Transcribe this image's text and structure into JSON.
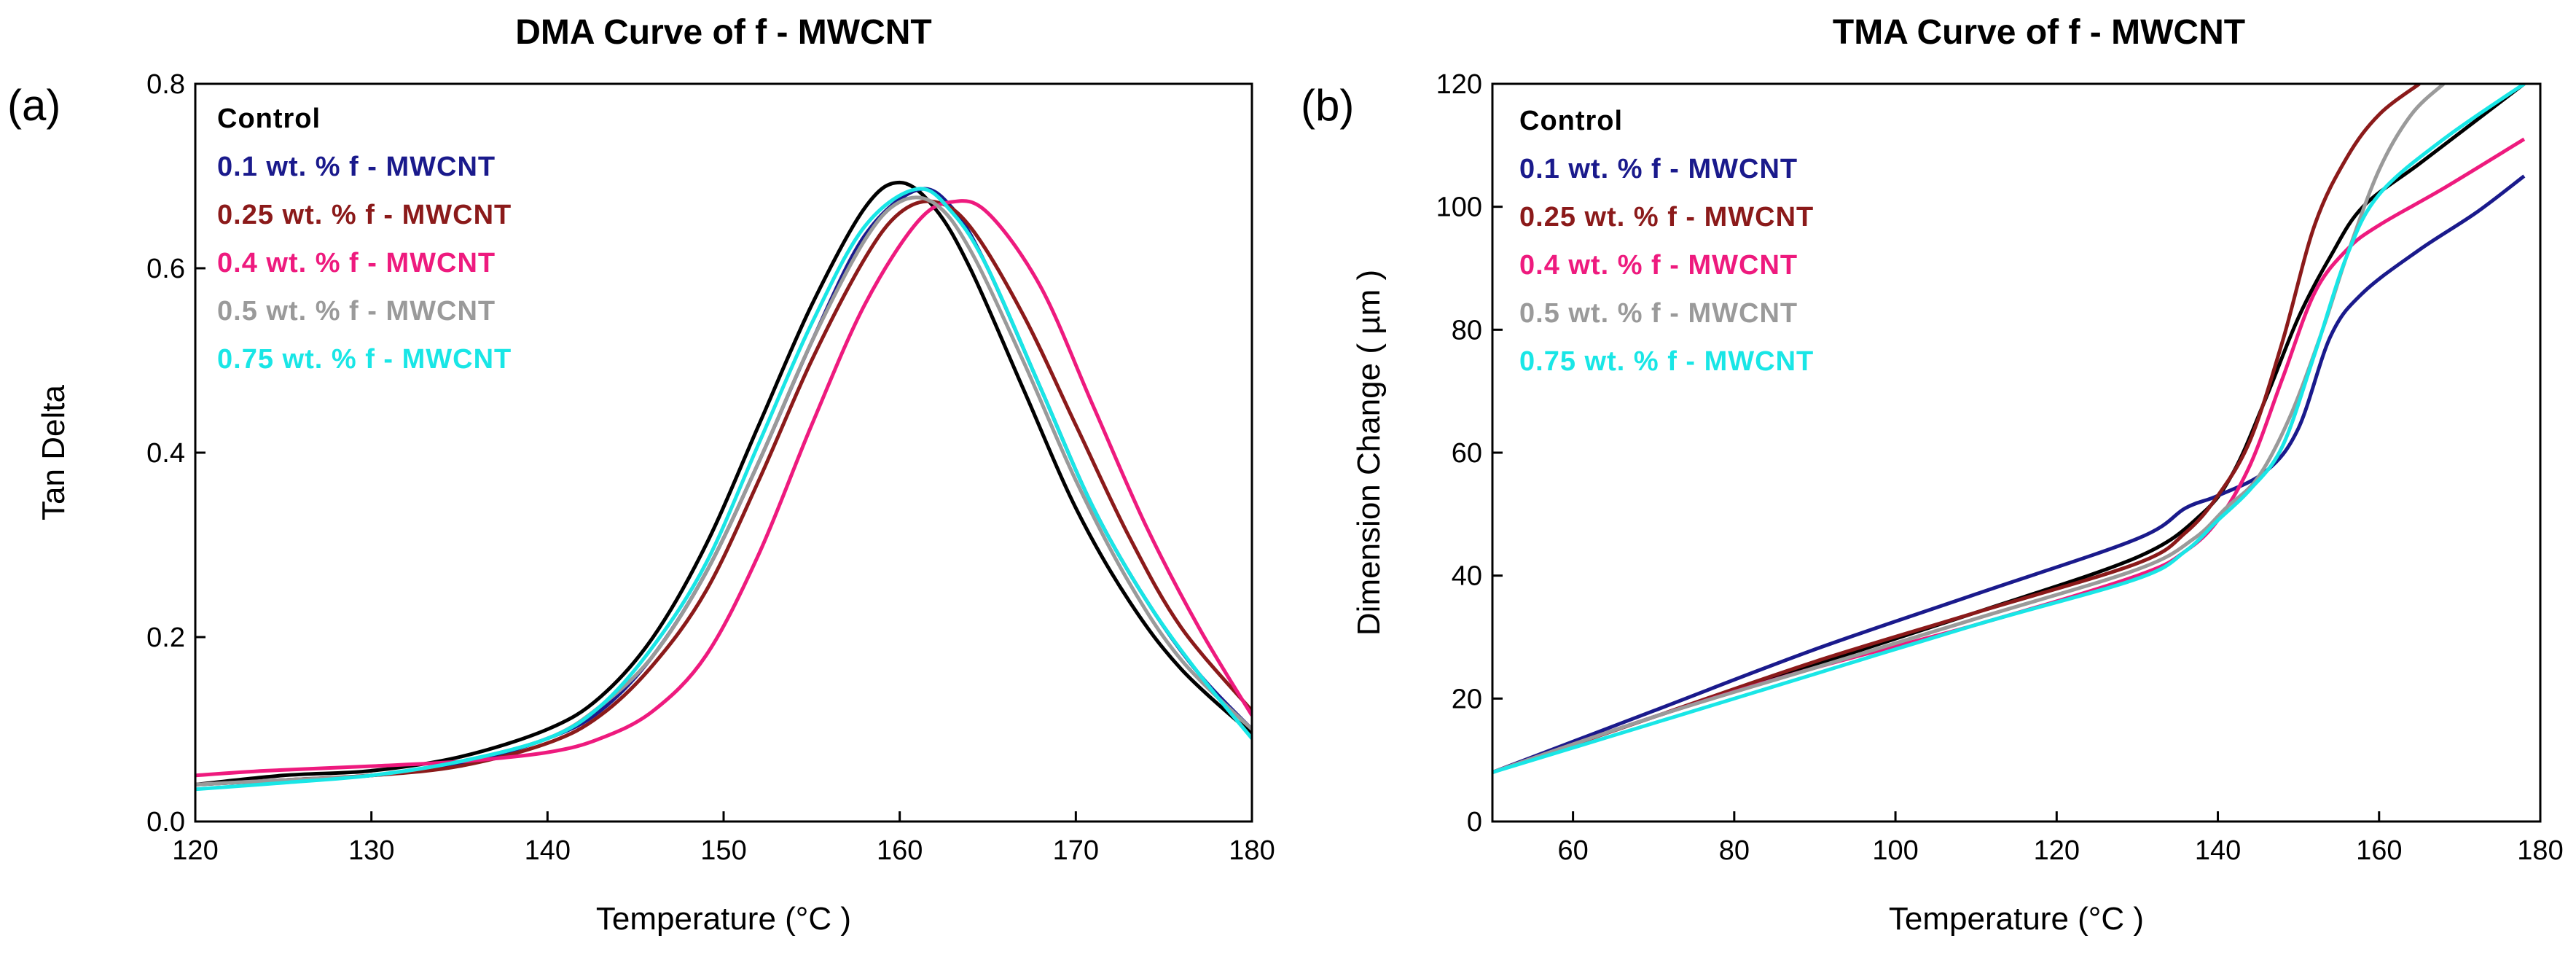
{
  "chart_data": [
    {
      "type": "line",
      "panel_label": "(a)",
      "title": "DMA Curve of f - MWCNT",
      "xlabel": "Temperature (°C )",
      "ylabel": "Tan Delta",
      "xlim": [
        120,
        180
      ],
      "ylim": [
        0.0,
        0.8
      ],
      "xticks": [
        120,
        130,
        140,
        150,
        160,
        170,
        180
      ],
      "yticks": [
        0.0,
        0.2,
        0.4,
        0.6,
        0.8
      ],
      "legend_position": "top-left",
      "series": [
        {
          "name": "Control",
          "color": "#000000",
          "x": [
            120,
            125,
            130,
            135,
            140,
            143,
            146,
            149,
            152,
            155,
            158,
            160,
            162,
            164,
            167,
            170,
            173,
            176,
            180
          ],
          "y": [
            0.04,
            0.05,
            0.055,
            0.07,
            0.1,
            0.135,
            0.2,
            0.3,
            0.43,
            0.56,
            0.665,
            0.693,
            0.665,
            0.6,
            0.47,
            0.34,
            0.24,
            0.165,
            0.095
          ]
        },
        {
          "name": "0.1 wt. % f - MWCNT",
          "color": "#1a1a8c",
          "x": [
            120,
            125,
            130,
            135,
            140,
            143,
            146,
            149,
            152,
            155,
            158,
            161,
            163,
            165,
            168,
            171,
            174,
            177,
            180
          ],
          "y": [
            0.04,
            0.045,
            0.05,
            0.062,
            0.09,
            0.12,
            0.18,
            0.27,
            0.39,
            0.52,
            0.635,
            0.685,
            0.665,
            0.6,
            0.47,
            0.34,
            0.24,
            0.16,
            0.1
          ]
        },
        {
          "name": "0.25 wt. % f - MWCNT",
          "color": "#8b1a1a",
          "x": [
            120,
            125,
            130,
            135,
            140,
            143,
            146,
            149,
            152,
            155,
            158,
            160,
            162,
            164,
            167,
            170,
            173,
            176,
            180
          ],
          "y": [
            0.04,
            0.045,
            0.05,
            0.06,
            0.085,
            0.115,
            0.17,
            0.25,
            0.37,
            0.5,
            0.61,
            0.66,
            0.672,
            0.645,
            0.55,
            0.43,
            0.31,
            0.21,
            0.12
          ]
        },
        {
          "name": "0.4 wt. % f - MWCNT",
          "color": "#ee1a7e",
          "x": [
            120,
            124,
            130,
            135,
            140,
            143,
            146,
            149,
            152,
            155,
            158,
            161,
            163,
            165,
            168,
            171,
            174,
            177,
            180
          ],
          "y": [
            0.05,
            0.055,
            0.06,
            0.065,
            0.075,
            0.09,
            0.12,
            0.18,
            0.29,
            0.43,
            0.56,
            0.65,
            0.672,
            0.66,
            0.58,
            0.45,
            0.32,
            0.21,
            0.115
          ]
        },
        {
          "name": "0.5 wt. % f - MWCNT",
          "color": "#9a9a9a",
          "x": [
            120,
            125,
            130,
            135,
            140,
            143,
            146,
            149,
            152,
            155,
            158,
            160,
            162,
            164,
            167,
            170,
            173,
            176,
            180
          ],
          "y": [
            0.04,
            0.045,
            0.05,
            0.065,
            0.09,
            0.125,
            0.18,
            0.27,
            0.39,
            0.52,
            0.63,
            0.672,
            0.67,
            0.62,
            0.5,
            0.37,
            0.26,
            0.175,
            0.1
          ]
        },
        {
          "name": "0.75 wt. % f - MWCNT",
          "color": "#19e6e6",
          "x": [
            120,
            125,
            130,
            135,
            140,
            143,
            146,
            149,
            152,
            155,
            158,
            161,
            163,
            165,
            168,
            171,
            174,
            177,
            180
          ],
          "y": [
            0.035,
            0.042,
            0.05,
            0.065,
            0.09,
            0.125,
            0.19,
            0.28,
            0.41,
            0.54,
            0.645,
            0.686,
            0.66,
            0.6,
            0.47,
            0.34,
            0.24,
            0.16,
            0.09
          ]
        }
      ]
    },
    {
      "type": "line",
      "panel_label": "(b)",
      "title": "TMA Curve of f - MWCNT",
      "xlabel": "Temperature (°C )",
      "ylabel": "Dimension Change ( µm )",
      "xlim": [
        50,
        180
      ],
      "ylim": [
        0,
        120
      ],
      "xticks": [
        60,
        80,
        100,
        120,
        140,
        160,
        180
      ],
      "yticks": [
        0,
        20,
        40,
        60,
        80,
        100,
        120
      ],
      "legend_position": "top-left",
      "series": [
        {
          "name": "Control",
          "color": "#000000",
          "x": [
            50,
            70,
            90,
            110,
            130,
            138,
            142,
            146,
            150,
            154,
            158,
            165,
            172,
            178
          ],
          "y": [
            8,
            17,
            25.5,
            34,
            43,
            50,
            57,
            69,
            82,
            92,
            100,
            107,
            114,
            120
          ]
        },
        {
          "name": "0.1 wt. % f - MWCNT",
          "color": "#1a1a8c",
          "x": [
            50,
            70,
            90,
            110,
            130,
            136,
            140,
            146,
            150,
            154,
            158,
            165,
            172,
            178
          ],
          "y": [
            8,
            18,
            28,
            37,
            46,
            51,
            53,
            57,
            64,
            79,
            86,
            93,
            99,
            105
          ]
        },
        {
          "name": "0.25 wt. % f - MWCNT",
          "color": "#8b1a1a",
          "x": [
            50,
            70,
            90,
            110,
            130,
            136,
            140,
            144,
            148,
            152,
            156,
            160,
            165
          ],
          "y": [
            8,
            17,
            26,
            34,
            42,
            47,
            53,
            62,
            78,
            97,
            108,
            115,
            120
          ]
        },
        {
          "name": "0.4 wt. % f - MWCNT",
          "color": "#ee1a7e",
          "x": [
            50,
            70,
            90,
            110,
            130,
            136,
            140,
            144,
            148,
            152,
            156,
            160,
            168,
            178
          ],
          "y": [
            8,
            17,
            25,
            32,
            40,
            44,
            49,
            58,
            72,
            86,
            93,
            97,
            103,
            111
          ]
        },
        {
          "name": "0.5 wt. % f - MWCNT",
          "color": "#9a9a9a",
          "x": [
            50,
            70,
            90,
            110,
            130,
            137,
            141,
            145,
            149,
            153,
            156,
            160,
            164,
            168
          ],
          "y": [
            8,
            17,
            25,
            33,
            41,
            46,
            51,
            56,
            66,
            80,
            92,
            106,
            115,
            120
          ]
        },
        {
          "name": "0.75 wt. % f - MWCNT",
          "color": "#19e6e6",
          "x": [
            50,
            70,
            90,
            110,
            130,
            136,
            140,
            144,
            148,
            152,
            156,
            160,
            168,
            178
          ],
          "y": [
            8,
            16,
            24,
            32,
            39.5,
            44,
            49,
            54,
            61,
            76,
            92,
            102,
            111,
            120
          ]
        }
      ]
    }
  ]
}
